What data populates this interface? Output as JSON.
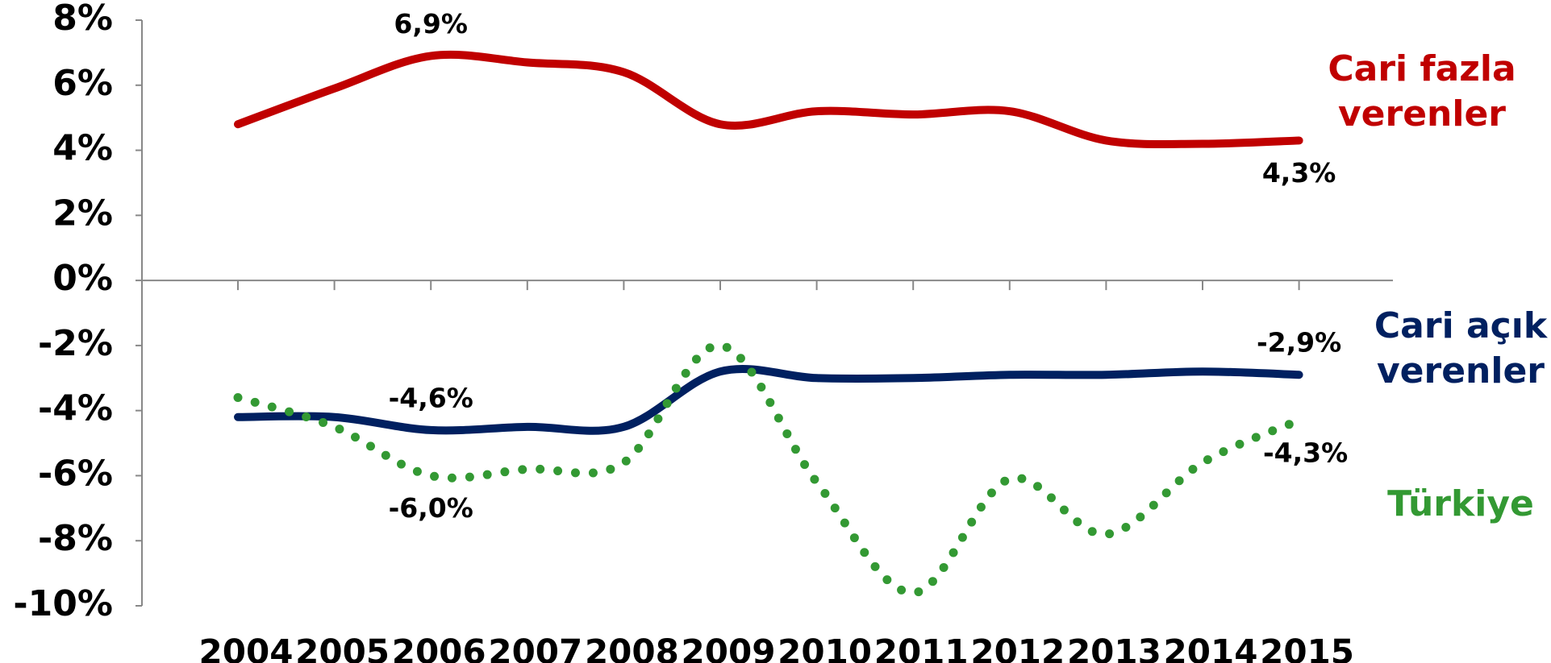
{
  "chart_data": {
    "type": "line",
    "categories": [
      "2004",
      "2005",
      "2006",
      "2007",
      "2008",
      "2009",
      "2010",
      "2011",
      "2012",
      "2013",
      "2014",
      "2015"
    ],
    "series": [
      {
        "name": "Cari fazla verenler",
        "color": "#c00000",
        "style": "solid",
        "values": [
          4.8,
          5.9,
          6.9,
          6.7,
          6.4,
          4.8,
          5.2,
          5.1,
          5.2,
          4.3,
          4.2,
          4.3
        ],
        "value_labels": [
          null,
          null,
          "6,9%",
          null,
          null,
          null,
          null,
          null,
          null,
          null,
          null,
          "4,3%"
        ]
      },
      {
        "name": "Cari açık verenler",
        "color": "#002060",
        "style": "solid",
        "values": [
          -4.2,
          -4.2,
          -4.6,
          -4.5,
          -4.5,
          -2.8,
          -3.0,
          -3.0,
          -2.9,
          -2.9,
          -2.8,
          -2.9
        ],
        "value_labels": [
          null,
          null,
          "-4,6%",
          null,
          null,
          null,
          null,
          null,
          null,
          null,
          null,
          "-2,9%"
        ]
      },
      {
        "name": "Türkiye",
        "color": "#339933",
        "style": "dotted",
        "values": [
          -3.6,
          -4.5,
          -6.0,
          -5.8,
          -5.6,
          -2.0,
          -6.2,
          -9.6,
          -6.1,
          -7.8,
          -5.6,
          -4.3
        ],
        "value_labels": [
          null,
          null,
          "-6,0%",
          null,
          null,
          null,
          null,
          null,
          null,
          null,
          null,
          "-4,3%"
        ]
      }
    ],
    "ylim": [
      -10,
      8
    ],
    "yticks": [
      {
        "value": 8,
        "label": "8%"
      },
      {
        "value": 6,
        "label": "6%"
      },
      {
        "value": 4,
        "label": "4%"
      },
      {
        "value": 2,
        "label": "2%"
      },
      {
        "value": 0,
        "label": "0%"
      },
      {
        "value": -2,
        "label": "-2%"
      },
      {
        "value": -4,
        "label": "-4%"
      },
      {
        "value": -6,
        "label": "-6%"
      },
      {
        "value": -8,
        "label": "-8%"
      },
      {
        "value": -10,
        "label": "-10%"
      }
    ]
  }
}
